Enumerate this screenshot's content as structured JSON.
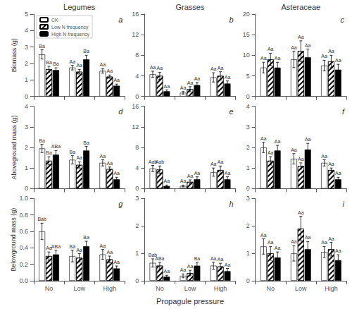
{
  "chart_data": [
    {
      "type": "bar",
      "title": "Legumes",
      "ylabel": "Biomass (g)",
      "annotations": [
        "a"
      ],
      "legend": "upper left",
      "categories": [
        null,
        null,
        null
      ],
      "ylim": [
        0,
        5
      ],
      "yticks": [
        0,
        1,
        2,
        3,
        4,
        5
      ],
      "grid": false,
      "series": [
        {
          "name": "CK",
          "color": "white",
          "values": [
            2.55,
            1.75,
            1.55
          ],
          "errors": [
            0.28,
            0.14,
            0.14
          ],
          "value_labels": [
            "Ba",
            "Aa",
            "Aa"
          ]
        },
        {
          "name": "Low N frequency",
          "color": "white",
          "values": [
            1.65,
            1.5,
            1.2
          ],
          "errors": [
            0.18,
            0.14,
            0.1
          ],
          "value_labels": [
            "Ba",
            "Aa",
            "Aa"
          ]
        },
        {
          "name": "High N frequency",
          "color": "black",
          "values": [
            1.6,
            2.25,
            0.65
          ],
          "errors": [
            0.14,
            0.25,
            0.1
          ],
          "value_labels": [
            "Ba",
            "Ba",
            "Aa"
          ]
        }
      ]
    },
    {
      "type": "bar",
      "title": "Grasses",
      "annotations": [
        "b"
      ],
      "categories": [
        null,
        null,
        null
      ],
      "ylim": [
        0,
        16
      ],
      "yticks": [
        0,
        4,
        8,
        12,
        16
      ],
      "grid": false,
      "series": [
        {
          "name": "CK",
          "color": "white",
          "values": [
            4.3,
            0.7,
            3.7
          ],
          "errors": [
            0.6,
            0.25,
            0.9
          ],
          "value_labels": [
            "Aa",
            "Aa",
            "Aa"
          ]
        },
        {
          "name": "Low N frequency",
          "color": "white",
          "values": [
            4.0,
            1.4,
            4.0
          ],
          "errors": [
            0.7,
            0.5,
            0.8
          ],
          "value_labels": [
            "Aa",
            "Aa",
            "Aa"
          ]
        },
        {
          "name": "High N frequency",
          "color": "black",
          "values": [
            1.0,
            2.2,
            2.5
          ],
          "errors": [
            0.25,
            0.5,
            0.5
          ],
          "value_labels": [
            "Aa",
            "Aa",
            "Aa"
          ]
        }
      ]
    },
    {
      "type": "bar",
      "title": "Asteraceae",
      "annotations": [
        "c"
      ],
      "categories": [
        null,
        null,
        null
      ],
      "ylim": [
        0,
        20
      ],
      "yticks": [
        0,
        5,
        10,
        15,
        20
      ],
      "grid": false,
      "series": [
        {
          "name": "CK",
          "color": "white",
          "values": [
            7.0,
            9.0,
            7.5
          ],
          "errors": [
            1.3,
            2.0,
            1.3
          ],
          "value_labels": [
            "Aa",
            "Aa",
            "Aa"
          ]
        },
        {
          "name": "Low N frequency",
          "color": "white",
          "values": [
            9.0,
            11.0,
            8.5
          ],
          "errors": [
            1.5,
            2.5,
            1.5
          ],
          "value_labels": [
            "Aa",
            "Aa",
            "Aa"
          ]
        },
        {
          "name": "High N frequency",
          "color": "black",
          "values": [
            7.0,
            9.5,
            6.5
          ],
          "errors": [
            1.3,
            2.0,
            1.3
          ],
          "value_labels": [
            "Aa",
            "Aa",
            "Aa"
          ]
        }
      ]
    },
    {
      "type": "bar",
      "ylabel": "Aboveground mass (g)",
      "annotations": [
        "d"
      ],
      "categories": [
        null,
        null,
        null
      ],
      "ylim": [
        0,
        4
      ],
      "yticks": [
        0,
        1,
        2,
        3,
        4
      ],
      "grid": false,
      "series": [
        {
          "name": "CK",
          "color": "white",
          "values": [
            1.95,
            1.4,
            1.25
          ],
          "errors": [
            0.2,
            0.2,
            0.15
          ],
          "value_labels": [
            "Ba",
            "Ba",
            "Aa"
          ]
        },
        {
          "name": "Low N frequency",
          "color": "white",
          "values": [
            1.35,
            1.15,
            0.95
          ],
          "errors": [
            0.2,
            0.15,
            0.1
          ],
          "value_labels": [
            "Ba",
            "Aa",
            "Aa"
          ]
        },
        {
          "name": "High N frequency",
          "color": "black",
          "values": [
            1.65,
            1.85,
            0.45
          ],
          "errors": [
            0.2,
            0.2,
            0.1
          ],
          "value_labels": [
            "ABa",
            "Ba",
            "Aa"
          ]
        }
      ]
    },
    {
      "type": "bar",
      "annotations": [
        "e"
      ],
      "categories": [
        null,
        null,
        null
      ],
      "ylim": [
        0,
        16
      ],
      "yticks": [
        0,
        4,
        8,
        12,
        16
      ],
      "grid": false,
      "series": [
        {
          "name": "CK",
          "color": "white",
          "values": [
            3.9,
            0.5,
            3.2
          ],
          "errors": [
            0.6,
            0.18,
            0.8
          ],
          "value_labels": [
            "Aab",
            "Aa",
            "Aa"
          ]
        },
        {
          "name": "Low N frequency",
          "color": "white",
          "values": [
            3.7,
            1.3,
            3.6
          ],
          "errors": [
            0.7,
            0.4,
            0.8
          ],
          "value_labels": [
            "Aab",
            "Aa",
            "Aa"
          ]
        },
        {
          "name": "High N frequency",
          "color": "black",
          "values": [
            0.5,
            1.8,
            1.8
          ],
          "errors": [
            0.18,
            0.5,
            0.5
          ],
          "value_labels": [
            "Aa",
            "Aa",
            "Aa"
          ]
        }
      ]
    },
    {
      "type": "bar",
      "annotations": [
        "f"
      ],
      "categories": [
        null,
        null,
        null
      ],
      "ylim": [
        0,
        4
      ],
      "yticks": [
        0,
        1,
        2,
        3,
        4
      ],
      "grid": false,
      "series": [
        {
          "name": "CK",
          "color": "white",
          "values": [
            2.0,
            1.45,
            1.25
          ],
          "errors": [
            0.25,
            0.25,
            0.15
          ],
          "value_labels": [
            "Aa",
            "Aa",
            "Aa"
          ]
        },
        {
          "name": "Low N frequency",
          "color": "white",
          "values": [
            1.35,
            1.1,
            0.9
          ],
          "errors": [
            0.2,
            0.15,
            0.1
          ],
          "value_labels": [
            "Aa",
            "Aa",
            "Aa"
          ]
        },
        {
          "name": "High N frequency",
          "color": "black",
          "values": [
            1.85,
            1.9,
            0.45
          ],
          "errors": [
            0.25,
            0.3,
            0.1
          ],
          "value_labels": [
            "Aa",
            "Aa",
            "Aa"
          ]
        }
      ]
    },
    {
      "type": "bar",
      "ylabel": "Belowground mass (g)",
      "annotations": [
        "g"
      ],
      "categories": [
        "No",
        "Low",
        "High"
      ],
      "ylim": [
        0,
        1.0
      ],
      "yticks": [
        {
          "value": 0,
          "label": "0.0"
        },
        0.2,
        0.4,
        0.6,
        0.8,
        {
          "value": 1.0,
          "label": "1.0"
        }
      ],
      "grid": false,
      "series": [
        {
          "name": "CK",
          "color": "white",
          "values": [
            0.6,
            0.3,
            0.32
          ],
          "errors": [
            0.1,
            0.07,
            0.06
          ],
          "value_labels": [
            "Bab",
            "Ba",
            "Aa"
          ]
        },
        {
          "name": "Low N frequency",
          "color": "white",
          "values": [
            0.3,
            0.28,
            0.26
          ],
          "errors": [
            0.05,
            0.05,
            0.04
          ],
          "value_labels": [
            "Aa",
            "Aa",
            "Aa"
          ]
        },
        {
          "name": "High N frequency",
          "color": "black",
          "values": [
            0.32,
            0.42,
            0.15
          ],
          "errors": [
            0.05,
            0.06,
            0.03
          ],
          "value_labels": [
            "ABa",
            "Ba",
            "Aa"
          ]
        }
      ]
    },
    {
      "type": "bar",
      "xlabel": "Propagule pressure",
      "annotations": [
        "h"
      ],
      "categories": [
        "No",
        "Low",
        "High"
      ],
      "ylim": [
        0,
        3
      ],
      "yticks": [
        0,
        1,
        2,
        3
      ],
      "grid": false,
      "series": [
        {
          "name": "CK",
          "color": "white",
          "values": [
            0.65,
            0.18,
            0.55
          ],
          "errors": [
            0.15,
            0.07,
            0.13
          ],
          "value_labels": [
            "Bab",
            "Aa",
            "Aa"
          ]
        },
        {
          "name": "Low N frequency",
          "color": "white",
          "values": [
            0.55,
            0.28,
            0.52
          ],
          "errors": [
            0.12,
            0.1,
            0.12
          ],
          "value_labels": [
            "ABa",
            "Aa",
            "Aa"
          ]
        },
        {
          "name": "High N frequency",
          "color": "black",
          "values": [
            0.15,
            0.55,
            0.35
          ],
          "errors": [
            0.05,
            0.12,
            0.1
          ],
          "value_labels": [
            "Aa",
            "Ba",
            "Aa"
          ]
        }
      ]
    },
    {
      "type": "bar",
      "annotations": [
        "i"
      ],
      "categories": [
        "No",
        "Low",
        "High"
      ],
      "ylim": [
        0,
        3
      ],
      "yticks": [
        0,
        1,
        2,
        3
      ],
      "grid": false,
      "series": [
        {
          "name": "CK",
          "color": "white",
          "values": [
            1.25,
            1.0,
            1.05
          ],
          "errors": [
            0.28,
            0.28,
            0.2
          ],
          "value_labels": [
            "Aa",
            "Aa",
            "Aa"
          ]
        },
        {
          "name": "Low N frequency",
          "color": "white",
          "values": [
            1.0,
            1.9,
            1.15
          ],
          "errors": [
            0.25,
            0.45,
            0.25
          ],
          "value_labels": [
            "Aa",
            "Aa",
            "Aa"
          ]
        },
        {
          "name": "High N frequency",
          "color": "black",
          "values": [
            0.85,
            1.15,
            0.75
          ],
          "errors": [
            0.2,
            0.28,
            0.2
          ],
          "value_labels": [
            "Aa",
            "Aa",
            "Aa"
          ]
        }
      ]
    }
  ]
}
